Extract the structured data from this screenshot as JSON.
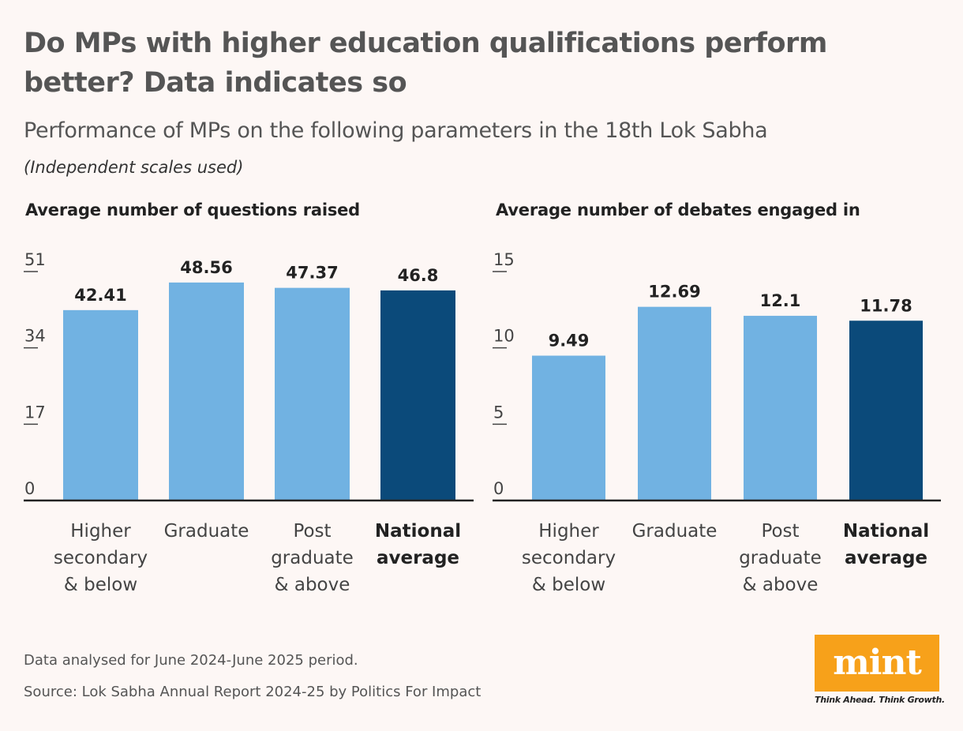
{
  "header": {
    "title": "Do MPs with higher education qualifications perform better? Data indicates so",
    "subtitle": "Performance of MPs on the following parameters in the 18th Lok Sabha",
    "note": "(Independent scales used)"
  },
  "colors": {
    "bar_light": "#71b2e2",
    "bar_dark": "#0b4a7a",
    "background": "#fdf7f5",
    "logo": "#f7a11a"
  },
  "chart_data": [
    {
      "type": "bar",
      "title": "Average number of questions raised",
      "categories": [
        [
          "Higher",
          "secondary",
          "& below"
        ],
        [
          "Graduate"
        ],
        [
          "Post",
          "graduate",
          "& above"
        ],
        [
          "National",
          "average"
        ]
      ],
      "highlight_index": 3,
      "values": [
        42.41,
        48.56,
        47.37,
        46.8
      ],
      "value_labels": [
        "42.41",
        "48.56",
        "47.37",
        "46.8"
      ],
      "ylim": [
        0,
        51
      ],
      "yticks": [
        0,
        17,
        34,
        51
      ],
      "ytick_labels": [
        "0",
        "17",
        "34",
        "51"
      ],
      "grid": false
    },
    {
      "type": "bar",
      "title": "Average number of debates engaged in",
      "categories": [
        [
          "Higher",
          "secondary",
          "& below"
        ],
        [
          "Graduate"
        ],
        [
          "Post",
          "graduate",
          "& above"
        ],
        [
          "National",
          "average"
        ]
      ],
      "highlight_index": 3,
      "values": [
        9.49,
        12.69,
        12.1,
        11.78
      ],
      "value_labels": [
        "9.49",
        "12.69",
        "12.1",
        "11.78"
      ],
      "ylim": [
        0,
        15
      ],
      "yticks": [
        0,
        5,
        10,
        15
      ],
      "ytick_labels": [
        "0",
        "5",
        "10",
        "15"
      ],
      "grid": false
    }
  ],
  "footer": {
    "period": "Data analysed for June 2024-June 2025 period.",
    "source": "Source: Lok Sabha Annual Report 2024-25 by Politics For Impact"
  },
  "logo": {
    "name": "mint",
    "tagline": "Think Ahead. Think Growth."
  }
}
